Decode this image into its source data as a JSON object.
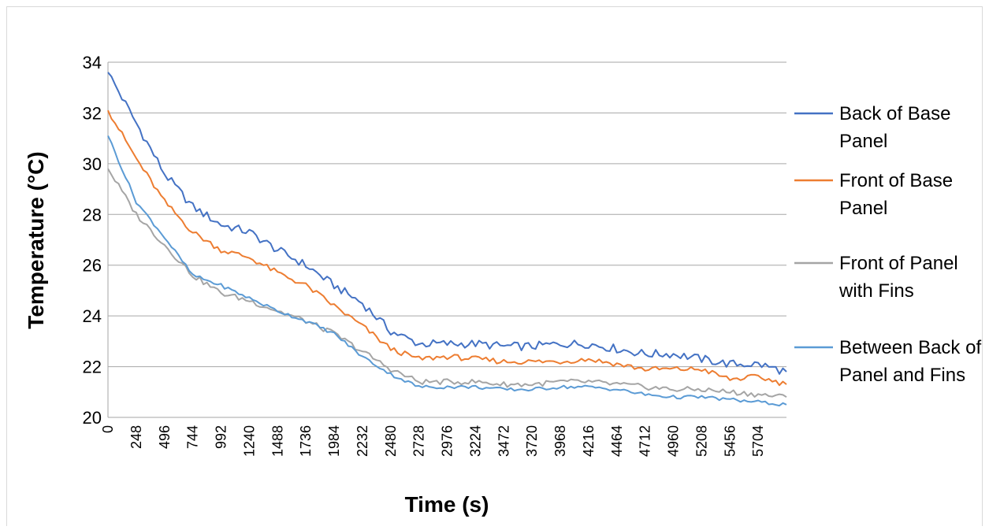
{
  "chart_data": {
    "type": "line",
    "title": "",
    "xlabel": "Time (s)",
    "ylabel": "Temperature (°C)",
    "ylim": [
      20,
      34
    ],
    "xlim": [
      0,
      5952
    ],
    "yticks": [
      "20",
      "22",
      "24",
      "26",
      "28",
      "30",
      "32",
      "34"
    ],
    "xticks": [
      "0",
      "248",
      "496",
      "744",
      "992",
      "1240",
      "1488",
      "1736",
      "1984",
      "2232",
      "2480",
      "2728",
      "2976",
      "3224",
      "3472",
      "3720",
      "3968",
      "4216",
      "4464",
      "4712",
      "4960",
      "5208",
      "5456",
      "5704"
    ],
    "grid": true,
    "legend_position": "right",
    "x": [
      0,
      248,
      496,
      744,
      992,
      1240,
      1488,
      1736,
      1984,
      2232,
      2480,
      2728,
      2976,
      3224,
      3472,
      3720,
      3968,
      4216,
      4464,
      4712,
      4960,
      5208,
      5456,
      5704,
      5952
    ],
    "series": [
      {
        "name": "Back of Base Panel",
        "color": "#4472C4",
        "values": [
          33.6,
          31.6,
          29.6,
          28.3,
          27.6,
          27.3,
          26.6,
          26.0,
          25.2,
          24.5,
          23.4,
          22.9,
          22.9,
          22.9,
          22.8,
          22.8,
          22.9,
          22.9,
          22.7,
          22.5,
          22.5,
          22.3,
          22.1,
          22.1,
          21.8
        ]
      },
      {
        "name": "Front of Base Panel",
        "color": "#ED7D31",
        "values": [
          32.1,
          30.2,
          28.5,
          27.3,
          26.6,
          26.3,
          25.7,
          25.2,
          24.4,
          23.6,
          22.7,
          22.3,
          22.4,
          22.3,
          22.2,
          22.2,
          22.2,
          22.3,
          22.1,
          21.9,
          21.9,
          21.9,
          21.5,
          21.6,
          21.3
        ]
      },
      {
        "name": "Front of Panel with Fins",
        "color": "#A5A5A5",
        "values": [
          29.8,
          28.0,
          26.8,
          25.6,
          24.9,
          24.6,
          24.2,
          23.8,
          23.3,
          22.6,
          21.9,
          21.4,
          21.4,
          21.4,
          21.3,
          21.3,
          21.4,
          21.4,
          21.3,
          21.2,
          21.1,
          21.1,
          21.0,
          20.9,
          20.8
        ]
      },
      {
        "name": "Between Back of Panel and Fins",
        "color": "#5B9BD5",
        "values": [
          31.1,
          28.5,
          27.1,
          25.6,
          25.2,
          24.7,
          24.2,
          23.8,
          23.3,
          22.4,
          21.7,
          21.2,
          21.2,
          21.2,
          21.1,
          21.1,
          21.2,
          21.2,
          21.1,
          20.9,
          20.8,
          20.8,
          20.7,
          20.6,
          20.5
        ]
      }
    ]
  }
}
